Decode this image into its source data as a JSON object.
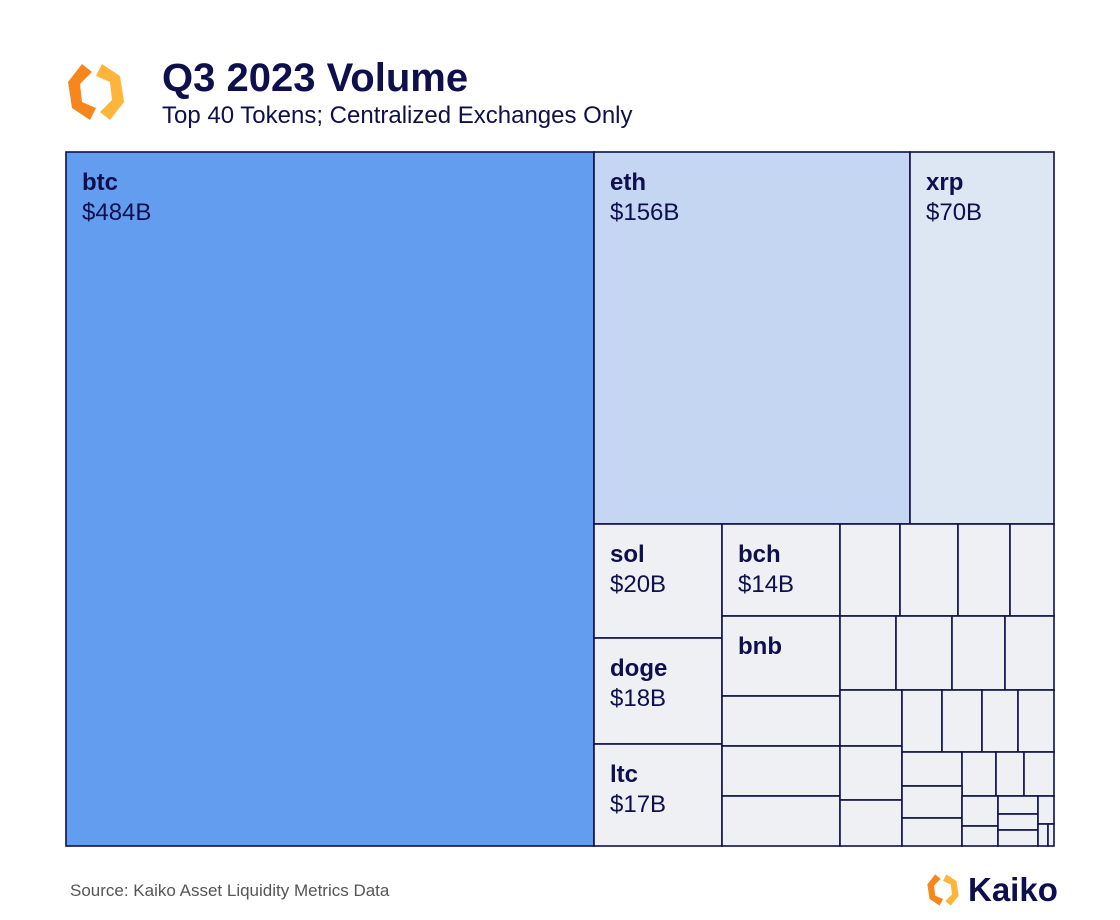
{
  "header": {
    "title": "Q3 2023 Volume",
    "subtitle": "Top 40 Tokens; Centralized Exchanges Only"
  },
  "footer": {
    "source": "Source: Kaiko Asset Liquidity Metrics Data",
    "brand": "Kaiko"
  },
  "colors": {
    "btc": "#629df0",
    "eth": "#c4d6f1",
    "xrp": "#dde6f3",
    "other": "#eef0f4",
    "border": "#0f0f4d",
    "text": "#0f0f4d",
    "logo_light": "#ffb43c",
    "logo_dark": "#f7861d"
  },
  "chart_data": {
    "type": "treemap",
    "unit": "USD billions",
    "items": [
      {
        "name": "btc",
        "value": 484,
        "label": "$484B"
      },
      {
        "name": "eth",
        "value": 156,
        "label": "$156B"
      },
      {
        "name": "xrp",
        "value": 70,
        "label": "$70B"
      },
      {
        "name": "sol",
        "value": 20,
        "label": "$20B"
      },
      {
        "name": "doge",
        "value": 18,
        "label": "$18B"
      },
      {
        "name": "ltc",
        "value": 17,
        "label": "$17B"
      },
      {
        "name": "bch",
        "value": 14,
        "label": "$14B"
      },
      {
        "name": "bnb",
        "value": 12,
        "label": ""
      }
    ]
  }
}
